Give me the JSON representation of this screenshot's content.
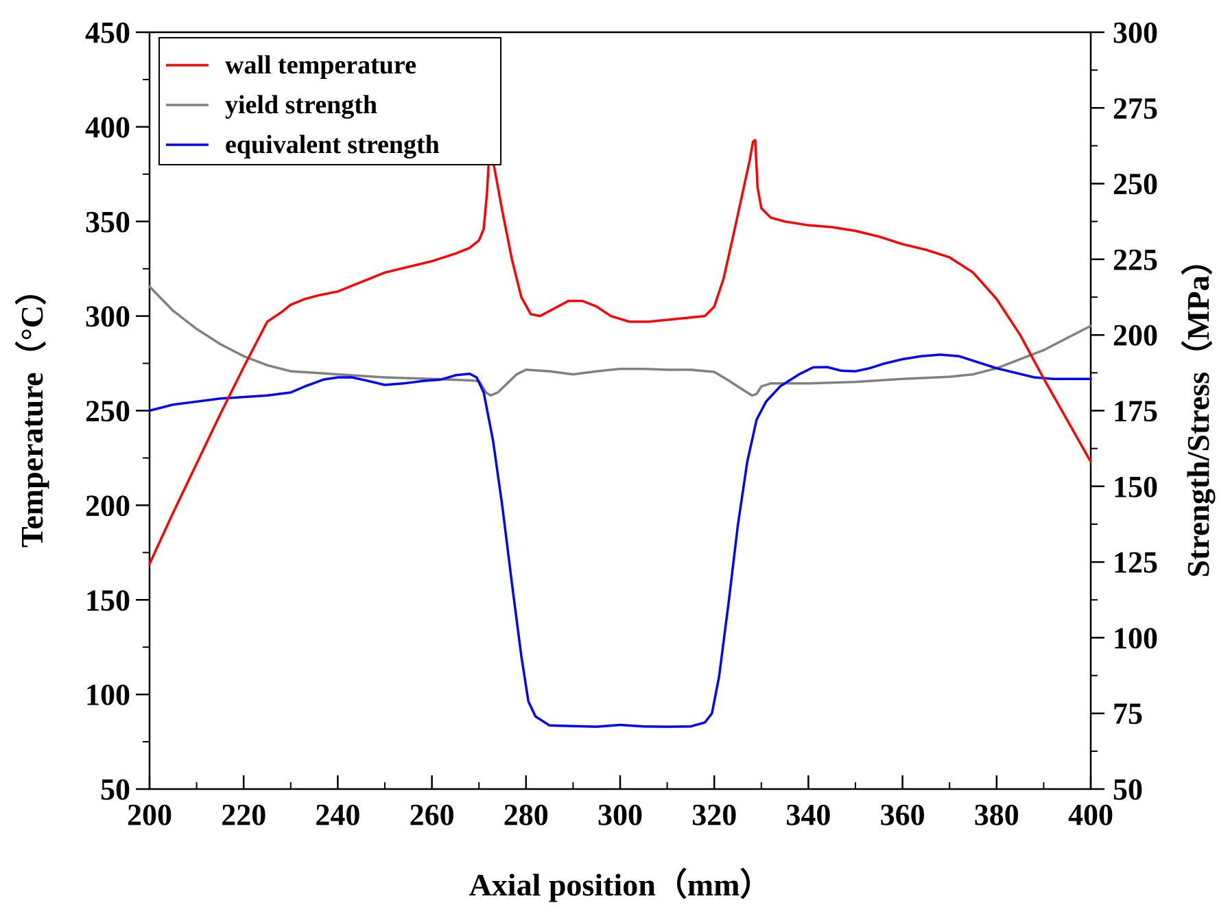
{
  "chart_data": {
    "type": "line",
    "title": "",
    "xlabel": "Axial position（mm）",
    "ylabel_left": "Temperature（°C）",
    "ylabel_right": "Strength/Stress（MPa）",
    "xlim": [
      200,
      400
    ],
    "ylim_left": [
      50,
      450
    ],
    "ylim_right": [
      50,
      300
    ],
    "x_ticks": [
      200,
      220,
      240,
      260,
      280,
      300,
      320,
      340,
      360,
      380,
      400
    ],
    "y_ticks_left": [
      50,
      100,
      150,
      200,
      250,
      300,
      350,
      400,
      450
    ],
    "y_ticks_right": [
      50,
      75,
      100,
      125,
      150,
      175,
      200,
      225,
      250,
      275,
      300
    ],
    "legend_position": "top-left",
    "grid": false,
    "series": [
      {
        "name": "wall temperature",
        "axis": "left",
        "color": "#ff0000",
        "points": [
          [
            200,
            169
          ],
          [
            205,
            196
          ],
          [
            210,
            222
          ],
          [
            215,
            248
          ],
          [
            220,
            273
          ],
          [
            225,
            297
          ],
          [
            228,
            302
          ],
          [
            230,
            306
          ],
          [
            233,
            309
          ],
          [
            236,
            311
          ],
          [
            240,
            313
          ],
          [
            245,
            318
          ],
          [
            250,
            323
          ],
          [
            255,
            326
          ],
          [
            260,
            329
          ],
          [
            265,
            333
          ],
          [
            268,
            336
          ],
          [
            270,
            340
          ],
          [
            271,
            346
          ],
          [
            271.7,
            365
          ],
          [
            272.2,
            387
          ],
          [
            273,
            382
          ],
          [
            275,
            355
          ],
          [
            277,
            330
          ],
          [
            279,
            310
          ],
          [
            281,
            301
          ],
          [
            283,
            300
          ],
          [
            286,
            304
          ],
          [
            289,
            308
          ],
          [
            292,
            308
          ],
          [
            295,
            305
          ],
          [
            298,
            300
          ],
          [
            302,
            297
          ],
          [
            306,
            297
          ],
          [
            310,
            298
          ],
          [
            314,
            299
          ],
          [
            318,
            300
          ],
          [
            320,
            305
          ],
          [
            322,
            320
          ],
          [
            324,
            342
          ],
          [
            326,
            365
          ],
          [
            327.5,
            382
          ],
          [
            328.2,
            392
          ],
          [
            328.7,
            393
          ],
          [
            329.2,
            368
          ],
          [
            330,
            357
          ],
          [
            332,
            352
          ],
          [
            335,
            350
          ],
          [
            340,
            348
          ],
          [
            345,
            347
          ],
          [
            350,
            345
          ],
          [
            355,
            342
          ],
          [
            360,
            338
          ],
          [
            365,
            335
          ],
          [
            370,
            331
          ],
          [
            375,
            323
          ],
          [
            380,
            309
          ],
          [
            385,
            290
          ],
          [
            390,
            267
          ],
          [
            395,
            245
          ],
          [
            400,
            223
          ]
        ]
      },
      {
        "name": "yield strength",
        "axis": "right",
        "color": "#808080",
        "points": [
          [
            200,
            216
          ],
          [
            205,
            208
          ],
          [
            210,
            202
          ],
          [
            215,
            197
          ],
          [
            220,
            193
          ],
          [
            225,
            190
          ],
          [
            230,
            188
          ],
          [
            235,
            187.5
          ],
          [
            240,
            187
          ],
          [
            250,
            186
          ],
          [
            260,
            185.5
          ],
          [
            268,
            185
          ],
          [
            270,
            184.8
          ],
          [
            271.5,
            181
          ],
          [
            272.5,
            180
          ],
          [
            274,
            181
          ],
          [
            276,
            184
          ],
          [
            278,
            187
          ],
          [
            280,
            188.5
          ],
          [
            285,
            188
          ],
          [
            290,
            187
          ],
          [
            295,
            188
          ],
          [
            300,
            188.8
          ],
          [
            305,
            188.8
          ],
          [
            310,
            188.5
          ],
          [
            315,
            188.5
          ],
          [
            320,
            187.8
          ],
          [
            323,
            185
          ],
          [
            326,
            182
          ],
          [
            328,
            180
          ],
          [
            329,
            180.5
          ],
          [
            330,
            183
          ],
          [
            332,
            184
          ],
          [
            340,
            184
          ],
          [
            350,
            184.5
          ],
          [
            360,
            185.5
          ],
          [
            370,
            186.2
          ],
          [
            375,
            187
          ],
          [
            380,
            189
          ],
          [
            385,
            192
          ],
          [
            390,
            195
          ],
          [
            395,
            199
          ],
          [
            400,
            203
          ]
        ]
      },
      {
        "name": "equivalent strength",
        "axis": "right",
        "color": "#0000ff",
        "points": [
          [
            200,
            175
          ],
          [
            205,
            177
          ],
          [
            210,
            178
          ],
          [
            215,
            179
          ],
          [
            220,
            179.5
          ],
          [
            225,
            180
          ],
          [
            230,
            181
          ],
          [
            233,
            183
          ],
          [
            237,
            185.3
          ],
          [
            240,
            186
          ],
          [
            243,
            186
          ],
          [
            246,
            185
          ],
          [
            250,
            183.5
          ],
          [
            254,
            184
          ],
          [
            258,
            184.8
          ],
          [
            262,
            185.3
          ],
          [
            265,
            186.7
          ],
          [
            268,
            187.2
          ],
          [
            269.5,
            186
          ],
          [
            271,
            181
          ],
          [
            273,
            165
          ],
          [
            275,
            143
          ],
          [
            277,
            118
          ],
          [
            279,
            94
          ],
          [
            280.5,
            79
          ],
          [
            282,
            74
          ],
          [
            285,
            71
          ],
          [
            290,
            70.8
          ],
          [
            295,
            70.6
          ],
          [
            300,
            71.2
          ],
          [
            305,
            70.7
          ],
          [
            310,
            70.6
          ],
          [
            315,
            70.7
          ],
          [
            318,
            72
          ],
          [
            319.5,
            75
          ],
          [
            321,
            87
          ],
          [
            323,
            111
          ],
          [
            325,
            137
          ],
          [
            327,
            158
          ],
          [
            329,
            172
          ],
          [
            331,
            178
          ],
          [
            334,
            183
          ],
          [
            338,
            187
          ],
          [
            341,
            189.3
          ],
          [
            344,
            189.4
          ],
          [
            347,
            188.2
          ],
          [
            350,
            188
          ],
          [
            353,
            189
          ],
          [
            356,
            190.5
          ],
          [
            360,
            192
          ],
          [
            364,
            193
          ],
          [
            368,
            193.5
          ],
          [
            372,
            193
          ],
          [
            376,
            191
          ],
          [
            380,
            189
          ],
          [
            384,
            187.5
          ],
          [
            388,
            186
          ],
          [
            392,
            185.5
          ],
          [
            396,
            185.5
          ],
          [
            400,
            185.5
          ]
        ]
      }
    ]
  }
}
